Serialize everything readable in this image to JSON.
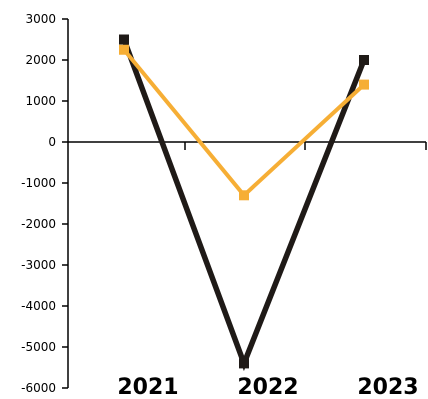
{
  "chart_data": {
    "type": "line",
    "title": "",
    "xlabel": "",
    "ylabel": "",
    "categories": [
      "2021",
      "2022",
      "2023"
    ],
    "ylim": [
      -6000,
      3000
    ],
    "yticks": [
      3000,
      2000,
      1000,
      0,
      -1000,
      -2000,
      -3000,
      -4000,
      -5000,
      -6000
    ],
    "grid": false,
    "legend": "none",
    "series": [
      {
        "color": "#1f1a17",
        "marker": "square",
        "values": [
          2500,
          -5400,
          2000
        ]
      },
      {
        "color": "#f6ae35",
        "marker": "square",
        "values": [
          2250,
          -1300,
          1400
        ]
      }
    ]
  }
}
